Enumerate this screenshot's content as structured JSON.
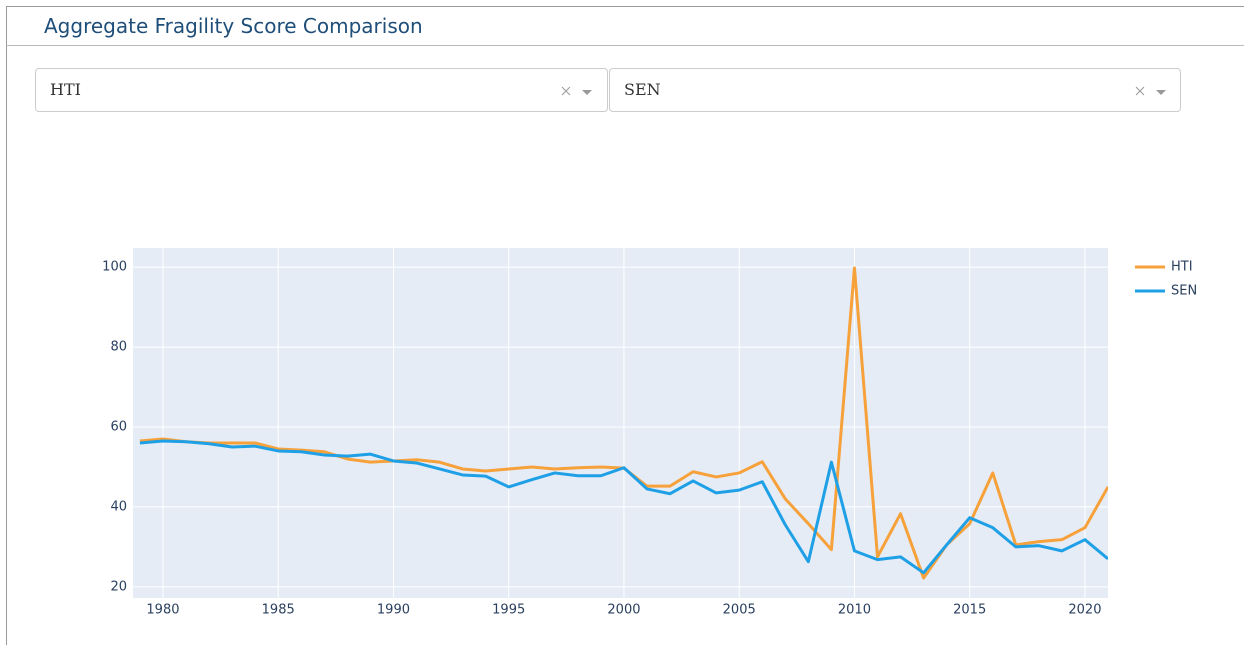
{
  "header": {
    "title": "Aggregate Fragility Score Comparison"
  },
  "dropdowns": [
    "HTI",
    "SEN"
  ],
  "chart_data": {
    "type": "line",
    "x": [
      1979,
      1980,
      1981,
      1982,
      1983,
      1984,
      1985,
      1986,
      1987,
      1988,
      1989,
      1990,
      1991,
      1992,
      1993,
      1994,
      1995,
      1996,
      1997,
      1998,
      1999,
      2000,
      2001,
      2002,
      2003,
      2004,
      2005,
      2006,
      2007,
      2008,
      2009,
      2010,
      2011,
      2012,
      2013,
      2014,
      2015,
      2016,
      2017,
      2018,
      2019,
      2020,
      2021
    ],
    "series": [
      {
        "name": "HTI",
        "color": "#f7a13b",
        "values": [
          56.5,
          57,
          56.3,
          56,
          56,
          56,
          54.5,
          54.2,
          53.8,
          52,
          51.2,
          51.5,
          51.8,
          51.2,
          49.5,
          49,
          49.5,
          50,
          49.5,
          49.8,
          50,
          49.7,
          45.2,
          45.2,
          48.8,
          47.5,
          48.5,
          51.3,
          42,
          35.8,
          29.3,
          99.8,
          27.5,
          38.3,
          22.2,
          30.5,
          35.8,
          48.5,
          30.5,
          31.3,
          31.8,
          34.8,
          45
        ]
      },
      {
        "name": "SEN",
        "color": "#1fa0e6",
        "values": [
          56,
          56.5,
          56.3,
          55.8,
          55,
          55.2,
          54,
          53.8,
          53,
          52.7,
          53.2,
          51.5,
          51,
          49.5,
          48,
          47.7,
          45,
          46.8,
          48.5,
          47.8,
          47.8,
          49.8,
          44.5,
          43.3,
          46.5,
          43.5,
          44.2,
          46.3,
          35.5,
          26.3,
          51.2,
          29,
          26.8,
          27.5,
          23.5,
          30.5,
          37.3,
          34.8,
          30,
          30.3,
          29,
          31.8,
          27
        ]
      }
    ],
    "xlim": [
      1978.7,
      2021
    ],
    "xticks": [
      1980,
      1985,
      1990,
      1995,
      2000,
      2005,
      2010,
      2015,
      2020
    ],
    "ylim": [
      17.2,
      104.8
    ],
    "yticks": [
      20,
      40,
      60,
      80,
      100
    ],
    "grid": true,
    "legend": "right"
  }
}
